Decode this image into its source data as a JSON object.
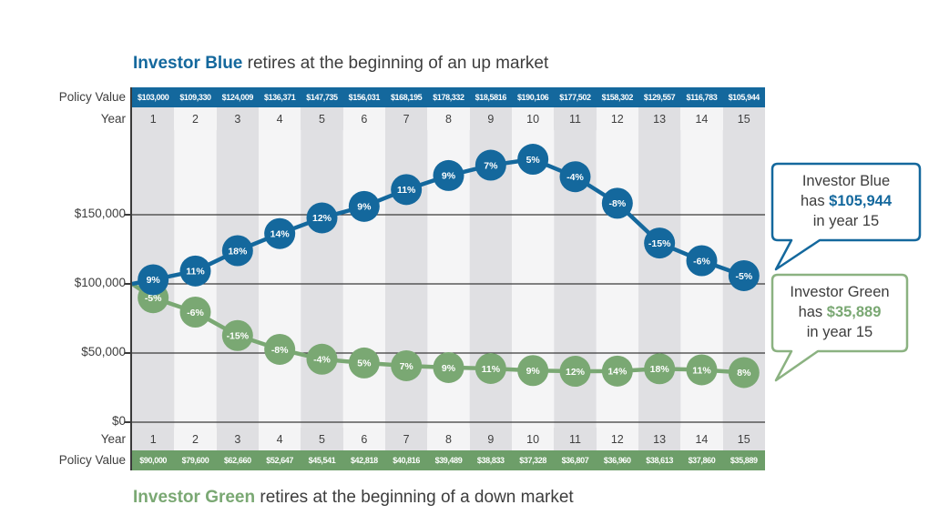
{
  "titles": {
    "top": {
      "bold": "Investor Blue",
      "rest": " retires at the beginning of an up market"
    },
    "bottom": {
      "bold": "Investor Green",
      "rest": " retires at the beginning of a down market"
    }
  },
  "axis_labels": {
    "policy_value_top": "Policy Value",
    "year_top": "Year",
    "y_ticks": [
      "$150,000",
      "$100,000",
      "$50,000",
      "$0"
    ],
    "year_bottom": "Year",
    "policy_value_bottom": "Policy Value"
  },
  "years": [
    "1",
    "2",
    "3",
    "4",
    "5",
    "6",
    "7",
    "8",
    "9",
    "10",
    "11",
    "12",
    "13",
    "14",
    "15"
  ],
  "blue_table": {
    "display_values": [
      "$103,000",
      "$109,330",
      "$124,009",
      "$136,371",
      "$147,735",
      "$156,031",
      "$168,195",
      "$178,332",
      "$18,5816",
      "$190,106",
      "$177,502",
      "$158,302",
      "$129,557",
      "$116,783",
      "$105,944"
    ]
  },
  "green_table": {
    "display_values": [
      "$90,000",
      "$79,600",
      "$62,660",
      "$52,647",
      "$45,541",
      "$42,818",
      "$40,816",
      "$39,489",
      "$38,833",
      "$37,328",
      "$36,807",
      "$36,960",
      "$38,613",
      "$37,860",
      "$35,889"
    ]
  },
  "callouts": {
    "blue": {
      "line1": "Investor Blue",
      "line2_prefix": "has ",
      "amount": "$105,944",
      "line3": "in year 15"
    },
    "green": {
      "line1": "Investor Green",
      "line2_prefix": "has ",
      "amount": "$35,889",
      "line3": "in year 15"
    }
  },
  "colors": {
    "blue": "#14689d",
    "green_line": "#7aa873",
    "green_bar": "#6d9e69",
    "blue_callout_border": "#14689d",
    "green_callout_border": "#8bb281",
    "grid": "#3a3a3a",
    "stripe_dark": "#e0e0e3",
    "stripe_light": "#f5f5f6"
  },
  "chart_data": {
    "type": "line",
    "title": "Policy value by year: retiring into an up market vs a down market",
    "x_label": "Year",
    "y_label": "Policy Value",
    "x": [
      1,
      2,
      3,
      4,
      5,
      6,
      7,
      8,
      9,
      10,
      11,
      12,
      13,
      14,
      15
    ],
    "y_axis_ticks": [
      150000,
      100000,
      50000,
      0
    ],
    "ylim": [
      0,
      211000
    ],
    "start_value": 100000,
    "grid": true,
    "legend_position": "none",
    "series": [
      {
        "name": "Investor Blue",
        "color": "#14689d",
        "values": [
          103000,
          109330,
          124009,
          136371,
          147735,
          156031,
          168195,
          178332,
          185816,
          190106,
          177502,
          158302,
          129557,
          116783,
          105944
        ],
        "annual_returns": [
          "9%",
          "11%",
          "18%",
          "14%",
          "12%",
          "9%",
          "11%",
          "9%",
          "7%",
          "5%",
          "-4%",
          "-8%",
          "-15%",
          "-6%",
          "-5%"
        ]
      },
      {
        "name": "Investor Green",
        "color": "#7aa873",
        "values": [
          90000,
          79600,
          62660,
          52647,
          45541,
          42818,
          40816,
          39489,
          38833,
          37328,
          36807,
          36960,
          38613,
          37860,
          35889
        ],
        "annual_returns": [
          "-5%",
          "-6%",
          "-15%",
          "-8%",
          "-4%",
          "5%",
          "7%",
          "9%",
          "11%",
          "9%",
          "12%",
          "14%",
          "18%",
          "11%",
          "8%"
        ]
      }
    ]
  }
}
